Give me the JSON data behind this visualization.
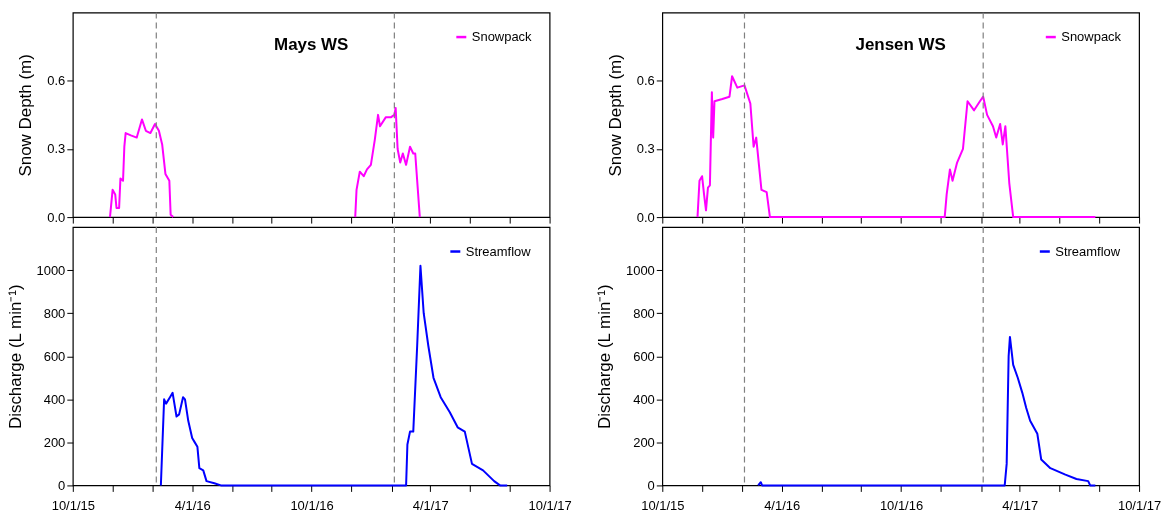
{
  "chart_data": [
    {
      "type": "line",
      "title": "Mays WS",
      "ylabel": "Snow Depth (m)",
      "legend": "top right",
      "tick_labels": "y",
      "xlim": [
        "2015-10-01",
        "2017-10-01"
      ],
      "xticks": [
        {
          "value": "2015-10-01",
          "label": null
        },
        {
          "value": "2015-12-01",
          "label": null
        },
        {
          "value": "2016-02-01",
          "label": null
        },
        {
          "value": "2016-04-01",
          "label": null
        },
        {
          "value": "2016-06-01",
          "label": null
        },
        {
          "value": "2016-08-01",
          "label": null
        },
        {
          "value": "2016-10-01",
          "label": null
        },
        {
          "value": "2016-12-01",
          "label": null
        },
        {
          "value": "2017-02-01",
          "label": null
        },
        {
          "value": "2017-04-01",
          "label": null
        },
        {
          "value": "2017-06-01",
          "label": null
        },
        {
          "value": "2017-08-01",
          "label": null
        },
        {
          "value": "2017-10-01",
          "label": null
        }
      ],
      "ylim": [
        0,
        0.9
      ],
      "yticks": [
        {
          "value": 0,
          "label": "0.0"
        },
        0.3,
        0.6
      ],
      "ref_lines": [
        {
          "axis": "x",
          "value": "2016-02-06",
          "color": "#808080",
          "line_style": "dashed"
        },
        {
          "axis": "x",
          "value": "2017-02-05",
          "color": "#808080",
          "line_style": "dashed"
        }
      ],
      "series": [
        {
          "name": "Snowpack",
          "color": "#ff00ff",
          "x": [
            "2015-11-27",
            "2015-12-01",
            "2015-12-05",
            "2015-12-07",
            "2015-12-11",
            "2015-12-13",
            "2015-12-17",
            "2015-12-19",
            "2015-12-21",
            "2015-12-29",
            "2016-01-07",
            "2016-01-15",
            "2016-01-21",
            "2016-01-28",
            "2016-02-04",
            "2016-02-10",
            "2016-02-15",
            "2016-02-20",
            "2016-02-26",
            "2016-02-28",
            "2016-03-03",
            "2016-06-01",
            "2016-12-07",
            "2016-12-09",
            "2016-12-14",
            "2016-12-20",
            "2016-12-25",
            "2016-12-31",
            "2017-01-06",
            "2017-01-11",
            "2017-01-14",
            "2017-01-23",
            "2017-01-31",
            "2017-02-05",
            "2017-02-07",
            "2017-02-10",
            "2017-02-14",
            "2017-02-18",
            "2017-02-23",
            "2017-03-01",
            "2017-03-06",
            "2017-03-09",
            "2017-03-16"
          ],
          "values": [
            0,
            0.12,
            0.1,
            0.04,
            0.04,
            0.17,
            0.16,
            0.31,
            0.37,
            0.36,
            0.35,
            0.43,
            0.38,
            0.37,
            0.41,
            0.38,
            0.32,
            0.19,
            0.16,
            0.01,
            0,
            null,
            0,
            0.12,
            0.2,
            0.18,
            0.21,
            0.23,
            0.34,
            0.45,
            0.4,
            0.44,
            0.44,
            0.45,
            0.48,
            0.3,
            0.24,
            0.28,
            0.23,
            0.31,
            0.28,
            0.28,
            0
          ]
        }
      ]
    },
    {
      "type": "line",
      "title": "Jensen WS",
      "ylabel": "Snow Depth (m)",
      "legend": "top right",
      "tick_labels": "y",
      "xlim": [
        "2015-10-01",
        "2017-10-01"
      ],
      "xticks": [
        {
          "value": "2015-10-01",
          "label": null
        },
        {
          "value": "2015-12-01",
          "label": null
        },
        {
          "value": "2016-02-01",
          "label": null
        },
        {
          "value": "2016-04-01",
          "label": null
        },
        {
          "value": "2016-06-01",
          "label": null
        },
        {
          "value": "2016-08-01",
          "label": null
        },
        {
          "value": "2016-10-01",
          "label": null
        },
        {
          "value": "2016-12-01",
          "label": null
        },
        {
          "value": "2017-02-01",
          "label": null
        },
        {
          "value": "2017-04-01",
          "label": null
        },
        {
          "value": "2017-06-01",
          "label": null
        },
        {
          "value": "2017-08-01",
          "label": null
        },
        {
          "value": "2017-10-01",
          "label": null
        }
      ],
      "ylim": [
        0,
        0.9
      ],
      "yticks": [
        {
          "value": 0,
          "label": "0.0"
        },
        0.3,
        0.6
      ],
      "ref_lines": [
        {
          "axis": "x",
          "value": "2016-02-04",
          "color": "#808080",
          "line_style": "dashed"
        },
        {
          "axis": "x",
          "value": "2017-02-04",
          "color": "#808080",
          "line_style": "dashed"
        }
      ],
      "series": [
        {
          "name": "Snowpack",
          "color": "#ff00ff",
          "x": [
            "2015-11-24",
            "2015-11-27",
            "2015-12-01",
            "2015-12-04",
            "2015-12-07",
            "2015-12-10",
            "2015-12-13",
            "2015-12-16",
            "2015-12-18",
            "2015-12-20",
            "2016-01-01",
            "2016-01-12",
            "2016-01-16",
            "2016-01-24",
            "2016-02-04",
            "2016-02-13",
            "2016-02-18",
            "2016-02-22",
            "2016-03-01",
            "2016-03-09",
            "2016-03-14",
            "2016-12-07",
            "2016-12-10",
            "2016-12-15",
            "2016-12-19",
            "2016-12-26",
            "2017-01-04",
            "2017-01-11",
            "2017-01-21",
            "2017-01-30",
            "2017-02-04",
            "2017-02-10",
            "2017-02-19",
            "2017-02-24",
            "2017-03-02",
            "2017-03-06",
            "2017-03-10",
            "2017-03-16",
            "2017-03-22",
            "2017-07-26"
          ],
          "values": [
            0,
            0.16,
            0.18,
            0.1,
            0.03,
            0.13,
            0.14,
            0.55,
            0.35,
            0.51,
            0.52,
            0.53,
            0.62,
            0.57,
            0.58,
            0.5,
            0.31,
            0.35,
            0.12,
            0.11,
            0,
            0,
            0.1,
            0.21,
            0.16,
            0.24,
            0.3,
            0.51,
            0.47,
            0.51,
            0.53,
            0.45,
            0.4,
            0.35,
            0.41,
            0.32,
            0.4,
            0.15,
            0,
            0
          ]
        }
      ]
    },
    {
      "type": "line",
      "ylabel": "Discharge (L min⁻¹)",
      "legend": "top right",
      "xlim": [
        "2015-10-01",
        "2017-10-01"
      ],
      "xticks": [
        {
          "value": "2015-10-01",
          "label": "10/1/15"
        },
        {
          "value": "2015-12-01",
          "label": null
        },
        {
          "value": "2016-02-01",
          "label": null
        },
        {
          "value": "2016-04-01",
          "label": "4/1/16"
        },
        {
          "value": "2016-06-01",
          "label": null
        },
        {
          "value": "2016-08-01",
          "label": null
        },
        {
          "value": "2016-10-01",
          "label": "10/1/16"
        },
        {
          "value": "2016-12-01",
          "label": null
        },
        {
          "value": "2017-02-01",
          "label": null
        },
        {
          "value": "2017-04-01",
          "label": "4/1/17"
        },
        {
          "value": "2017-06-01",
          "label": null
        },
        {
          "value": "2017-08-01",
          "label": null
        },
        {
          "value": "2017-10-01",
          "label": "10/1/17"
        }
      ],
      "ylim": [
        0,
        1200
      ],
      "yticks": [
        0,
        200,
        400,
        600,
        800,
        1000
      ],
      "ref_lines": [
        {
          "axis": "x",
          "value": "2016-02-06",
          "color": "#808080",
          "line_style": "dashed"
        },
        {
          "axis": "x",
          "value": "2017-02-05",
          "color": "#808080",
          "line_style": "dashed"
        }
      ],
      "series": [
        {
          "name": "Streamflow",
          "color": "#0000ff",
          "x": [
            "2016-02-13",
            "2016-02-18",
            "2016-02-21",
            "2016-02-27",
            "2016-03-02",
            "2016-03-08",
            "2016-03-12",
            "2016-03-18",
            "2016-03-21",
            "2016-03-26",
            "2016-04-01",
            "2016-04-05",
            "2016-04-09",
            "2016-04-12",
            "2016-04-18",
            "2016-04-23",
            "2016-05-05",
            "2016-05-15",
            "2017-02-23",
            "2017-02-25",
            "2017-03-01",
            "2017-03-06",
            "2017-03-12",
            "2017-03-17",
            "2017-03-22",
            "2017-03-29",
            "2017-04-06",
            "2017-04-17",
            "2017-05-01",
            "2017-05-13",
            "2017-05-24",
            "2017-06-04",
            "2017-06-21",
            "2017-07-08",
            "2017-07-17",
            "2017-07-28"
          ],
          "values": [
            0,
            400,
            380,
            410,
            430,
            320,
            330,
            410,
            400,
            300,
            220,
            200,
            180,
            80,
            70,
            20,
            10,
            0,
            0,
            190,
            250,
            250,
            650,
            1020,
            800,
            650,
            500,
            410,
            340,
            270,
            250,
            100,
            70,
            20,
            0,
            0
          ]
        }
      ]
    },
    {
      "type": "line",
      "ylabel": "Discharge (L min⁻¹)",
      "legend": "top right",
      "xlim": [
        "2015-10-01",
        "2017-10-01"
      ],
      "xticks": [
        {
          "value": "2015-10-01",
          "label": "10/1/15"
        },
        {
          "value": "2015-12-01",
          "label": null
        },
        {
          "value": "2016-02-01",
          "label": null
        },
        {
          "value": "2016-04-01",
          "label": "4/1/16"
        },
        {
          "value": "2016-06-01",
          "label": null
        },
        {
          "value": "2016-08-01",
          "label": null
        },
        {
          "value": "2016-10-01",
          "label": "10/1/16"
        },
        {
          "value": "2016-12-01",
          "label": null
        },
        {
          "value": "2017-02-01",
          "label": null
        },
        {
          "value": "2017-04-01",
          "label": "4/1/17"
        },
        {
          "value": "2017-06-01",
          "label": null
        },
        {
          "value": "2017-08-01",
          "label": null
        },
        {
          "value": "2017-10-01",
          "label": "10/1/17"
        }
      ],
      "ylim": [
        0,
        1200
      ],
      "yticks": [
        0,
        200,
        400,
        600,
        800,
        1000
      ],
      "ref_lines": [
        {
          "axis": "x",
          "value": "2016-02-04",
          "color": "#808080",
          "line_style": "dashed"
        },
        {
          "axis": "x",
          "value": "2017-02-04",
          "color": "#808080",
          "line_style": "dashed"
        }
      ],
      "series": [
        {
          "name": "Streamflow",
          "color": "#0000ff",
          "x": [
            "2016-02-25",
            "2016-02-29",
            "2016-03-02",
            "2017-03-09",
            "2017-03-12",
            "2017-03-15",
            "2017-03-17",
            "2017-03-22",
            "2017-03-29",
            "2017-04-05",
            "2017-04-11",
            "2017-04-17",
            "2017-04-28",
            "2017-05-04",
            "2017-05-18",
            "2017-06-10",
            "2017-06-27",
            "2017-07-15",
            "2017-07-18",
            "2017-07-26"
          ],
          "values": [
            0,
            15,
            0,
            0,
            100,
            600,
            690,
            560,
            500,
            430,
            360,
            300,
            240,
            120,
            80,
            50,
            30,
            20,
            0,
            0
          ]
        }
      ]
    }
  ]
}
